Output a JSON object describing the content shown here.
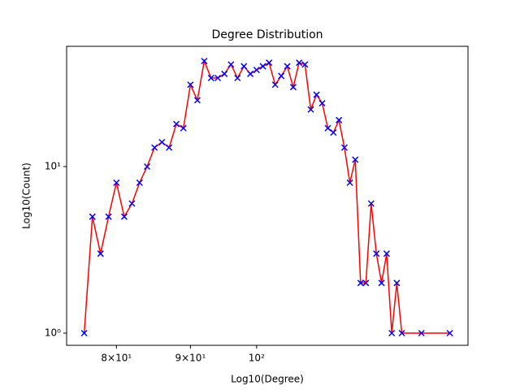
{
  "chart_data": {
    "type": "line",
    "title": "Degree Distribution",
    "xlabel": "Log10(Degree)",
    "ylabel": "Log10(Count)",
    "xscale": "log",
    "yscale": "log",
    "x": [
      76,
      77,
      78,
      79,
      80,
      81,
      82,
      83,
      84,
      85,
      86,
      87,
      88,
      89,
      90,
      91,
      92,
      93,
      94,
      95,
      96,
      97,
      98,
      99,
      100,
      101,
      102,
      103,
      104,
      105,
      106,
      107,
      108,
      109,
      110,
      111,
      112,
      113,
      114,
      115,
      116,
      117,
      118,
      119,
      120,
      121,
      122,
      123,
      124,
      125,
      126,
      130,
      136
    ],
    "series": [
      {
        "color": "red",
        "marker_color": "blue",
        "values": [
          1,
          5,
          3,
          5,
          8,
          5,
          6,
          8,
          10,
          13,
          14,
          13,
          18,
          17,
          31,
          25,
          43,
          34,
          34,
          36,
          41,
          34,
          40,
          36,
          38,
          40,
          42,
          31,
          35,
          40,
          30,
          42,
          41,
          22,
          27,
          24,
          17,
          16,
          19,
          13,
          8,
          11,
          2,
          2,
          6,
          3,
          2,
          3,
          1,
          2,
          1,
          1,
          1
        ]
      }
    ],
    "xlim": [
      73.9,
      140
    ],
    "ylim": [
      0.845,
      52.7
    ],
    "xticks": [
      {
        "value": 80,
        "label": "8×10¹"
      },
      {
        "value": 90,
        "label": "9×10¹"
      },
      {
        "value": 100,
        "label": "10²"
      }
    ],
    "yticks": [
      {
        "value": 1,
        "label": "10⁰"
      },
      {
        "value": 10,
        "label": "10¹"
      }
    ]
  }
}
